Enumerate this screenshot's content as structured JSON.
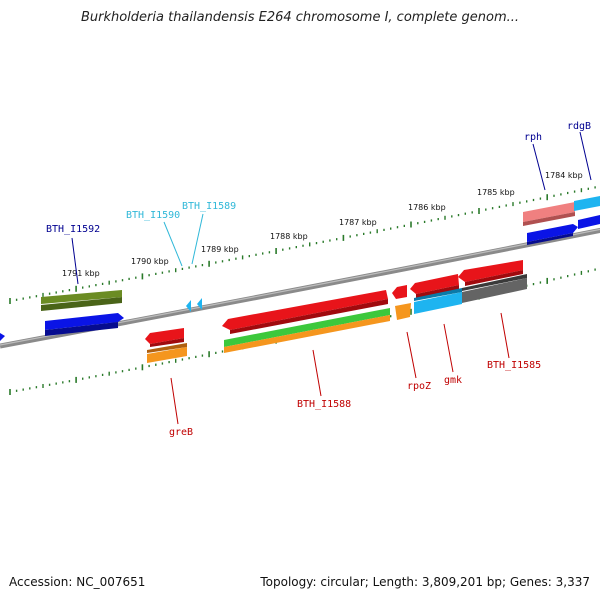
{
  "title": "Burkholderia thailandensis E264 chromosome I, complete genom...",
  "accession": "Accession: NC_007651",
  "summary": "Topology: circular; Length: 3,809,201 bp; Genes: 3,337",
  "kbp_labels": [
    "1791 kbp",
    "1790 kbp",
    "1789 kbp",
    "1788 kbp",
    "1787 kbp",
    "1786 kbp",
    "1785 kbp",
    "1784 kbp"
  ],
  "gene_labels": {
    "BTH_I1592": "BTH_I1592",
    "BTH_I1590": "BTH_I1590",
    "BTH_I1589": "BTH_I1589",
    "rph": "rph",
    "rdgB": "rdgB",
    "greB": "greB",
    "BTH_I1588": "BTH_I1588",
    "rpoZ": "rpoZ",
    "gmk": "gmk",
    "BTH_I1585": "BTH_I1585"
  },
  "colors": {
    "gene_red": "#e8141a",
    "gene_blue": "#0a14e6",
    "gene_olive": "#6b8c23",
    "gene_orange": "#f5961e",
    "gene_green": "#3cc83c",
    "gene_cyan": "#1eb4f0",
    "gene_gray": "#646464",
    "gene_pink": "#f08080",
    "label_navy": "#000090",
    "label_cyan": "#30b8d8",
    "label_red": "#c00000",
    "tick_green": "#2a7a2a"
  }
}
